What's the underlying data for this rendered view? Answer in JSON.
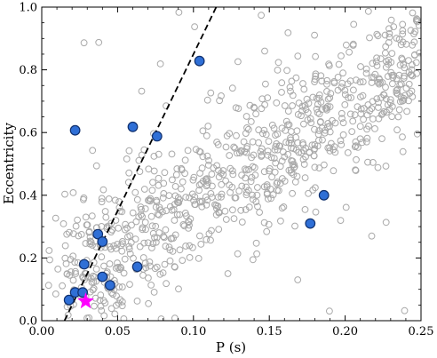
{
  "chart_data": {
    "type": "scatter",
    "title": "",
    "xlabel": "P (s)",
    "ylabel": "Eccentricity",
    "xlim": [
      0,
      0.25
    ],
    "ylim": [
      0,
      1.0
    ],
    "x_ticks": [
      "0.00",
      "0.05",
      "0.10",
      "0.15",
      "0.20",
      "0.25"
    ],
    "x_tick_values": [
      0,
      0.05,
      0.1,
      0.15,
      0.2,
      0.25
    ],
    "y_ticks": [
      "0.0",
      "0.2",
      "0.4",
      "0.6",
      "0.8",
      "1.0"
    ],
    "y_tick_values": [
      0,
      0.2,
      0.4,
      0.6,
      0.8,
      1.0
    ],
    "grid": false,
    "background_population": {
      "marker": "open-circle",
      "color": "#a9a9a9",
      "approx_count": 900,
      "note": "dense cloud rising from low P/low e to high P/high e"
    },
    "highlighted_points": {
      "marker": "filled-circle",
      "color": "#2f6fd6",
      "edge": "#10306e",
      "points": [
        {
          "x": 0.022,
          "y": 0.607
        },
        {
          "x": 0.06,
          "y": 0.618
        },
        {
          "x": 0.076,
          "y": 0.588
        },
        {
          "x": 0.104,
          "y": 0.828
        },
        {
          "x": 0.186,
          "y": 0.4
        },
        {
          "x": 0.177,
          "y": 0.31
        },
        {
          "x": 0.037,
          "y": 0.276
        },
        {
          "x": 0.04,
          "y": 0.252
        },
        {
          "x": 0.028,
          "y": 0.18
        },
        {
          "x": 0.063,
          "y": 0.172
        },
        {
          "x": 0.04,
          "y": 0.14
        },
        {
          "x": 0.045,
          "y": 0.113
        },
        {
          "x": 0.022,
          "y": 0.09
        },
        {
          "x": 0.027,
          "y": 0.09
        },
        {
          "x": 0.018,
          "y": 0.066
        }
      ]
    },
    "special_point": {
      "marker": "star",
      "color": "#ff00ff",
      "x": 0.029,
      "y": 0.062
    },
    "dashed_line": {
      "color": "#000000",
      "style": "dashed",
      "points": [
        {
          "x": 0.015,
          "y": 0.0
        },
        {
          "x": 0.115,
          "y": 1.0
        }
      ]
    }
  }
}
